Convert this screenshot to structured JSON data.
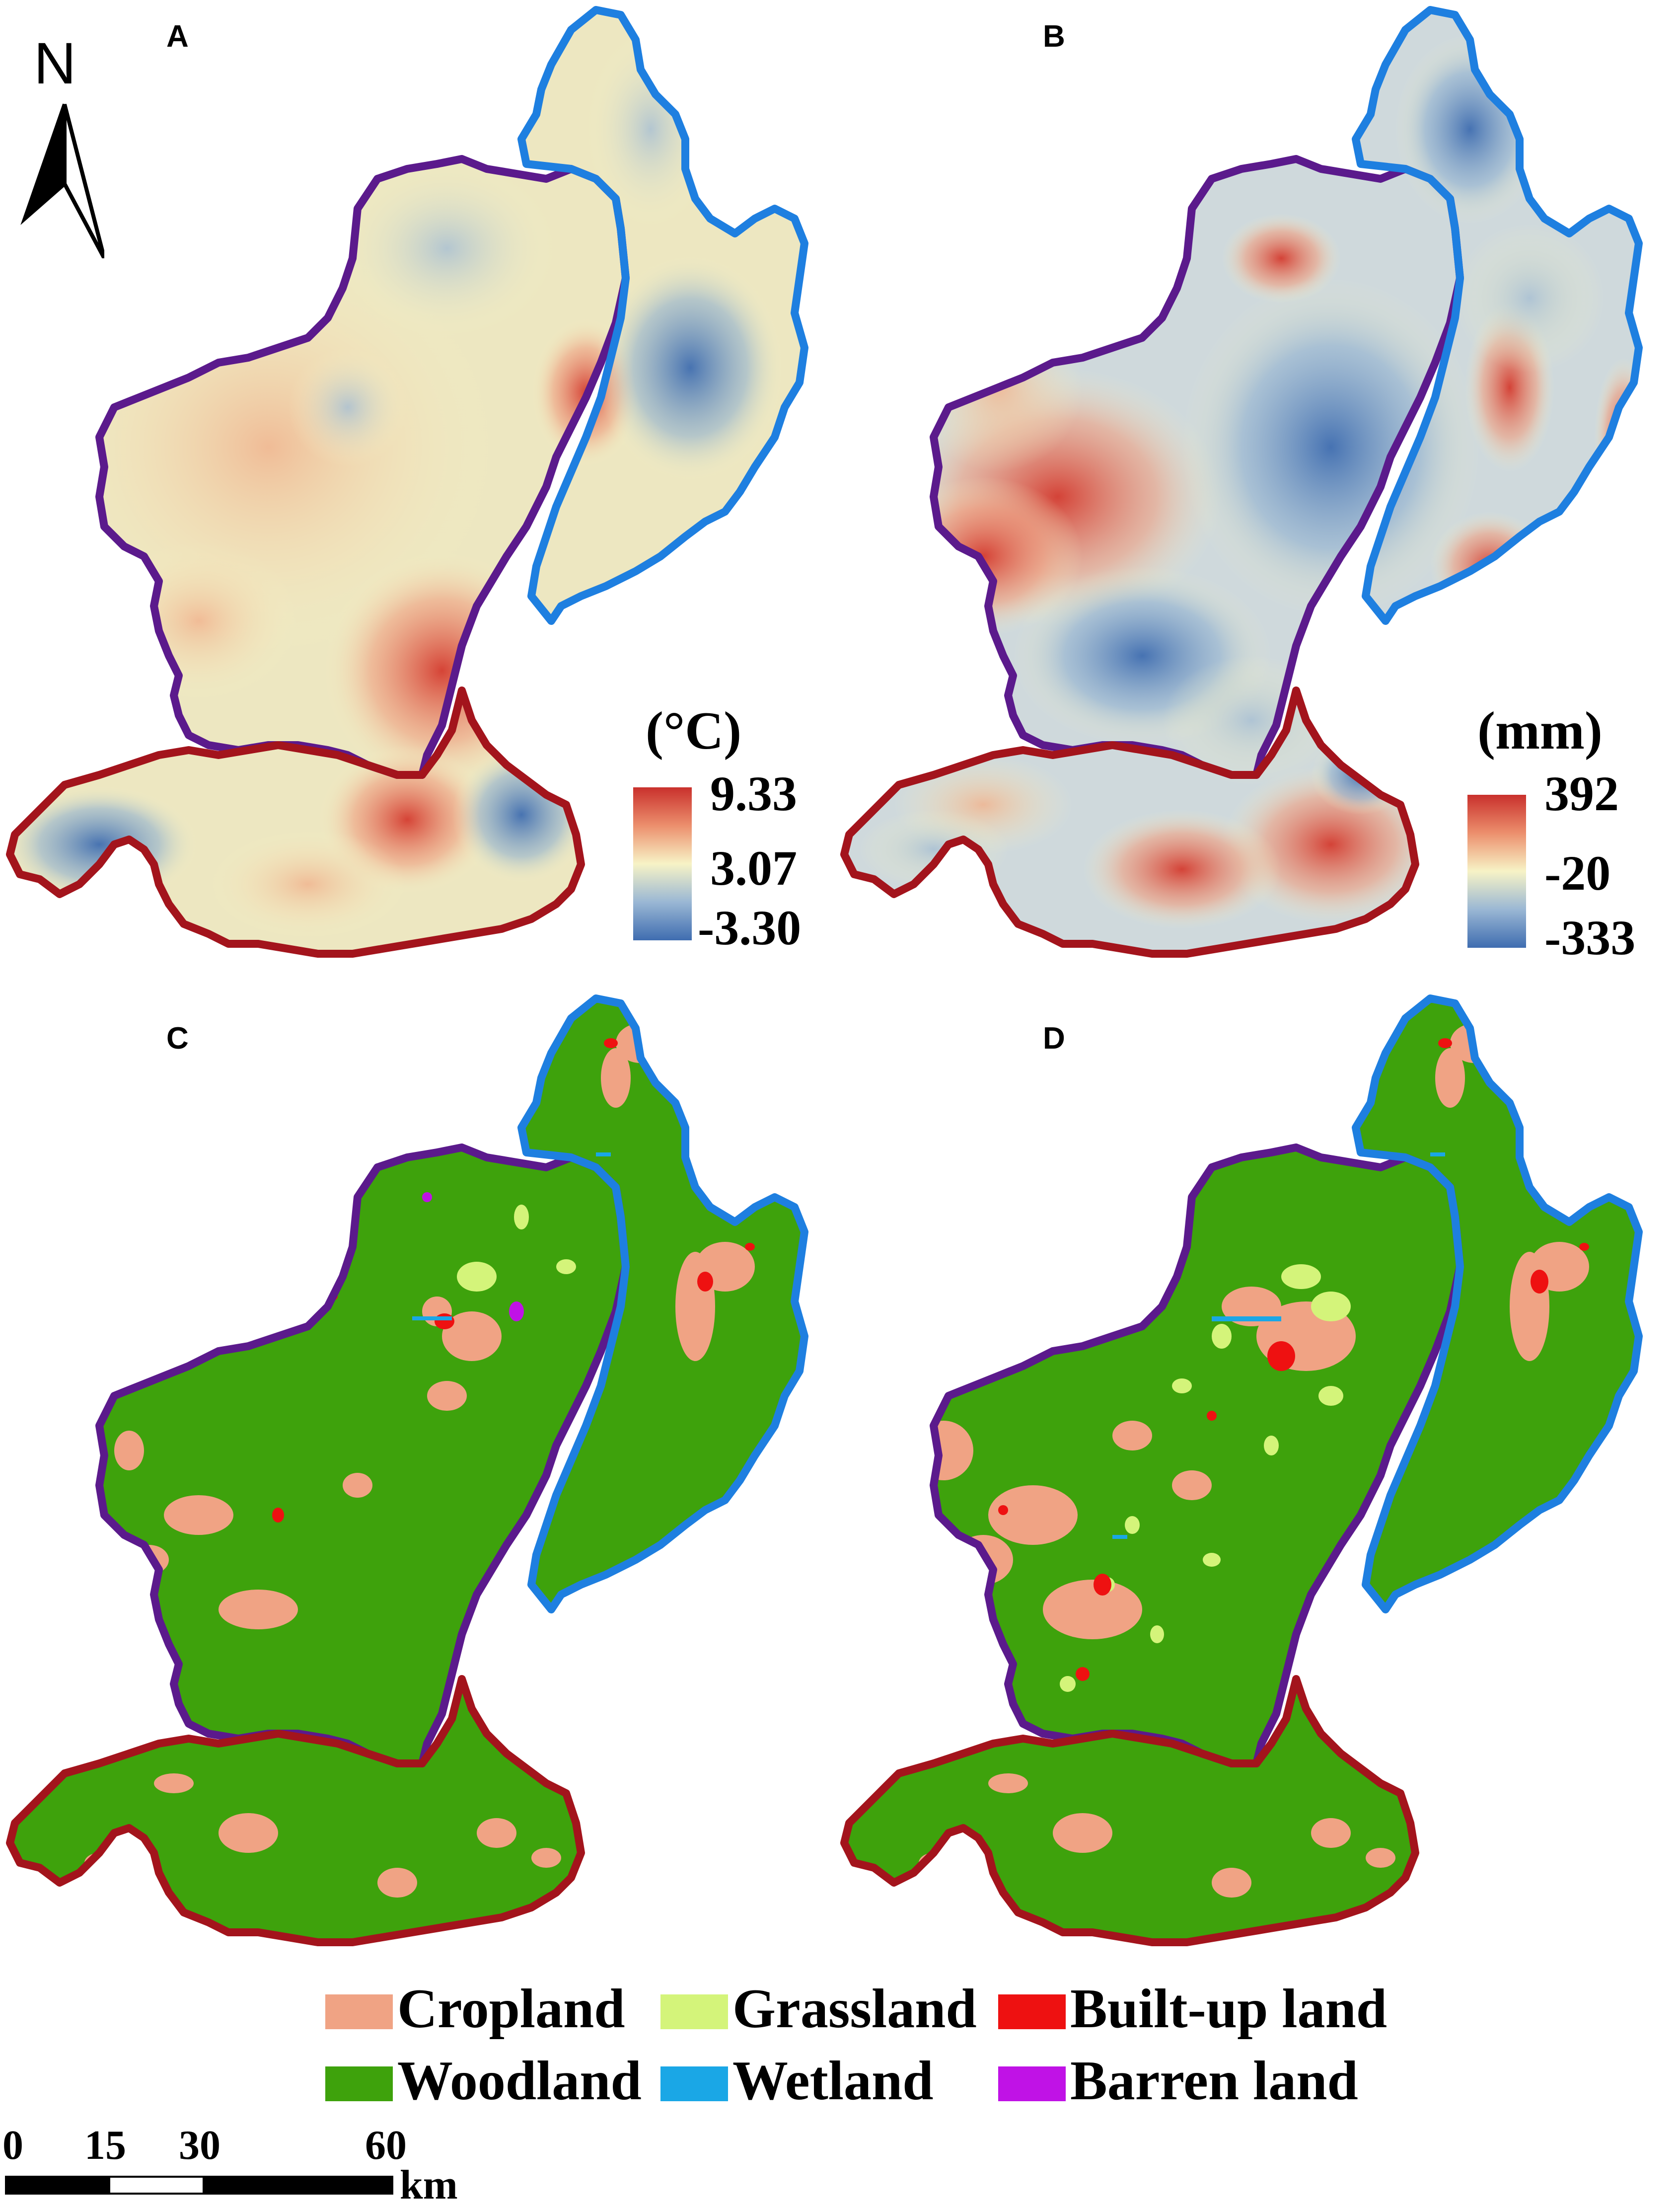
{
  "compass": {
    "letter": "N"
  },
  "panels": {
    "A": {
      "label": "A",
      "legend": {
        "unit": "(°C)",
        "max": "9.33",
        "mid": "3.07",
        "min": "-3.30",
        "colors": {
          "high": "#c9302c",
          "mid": "#f7f3c6",
          "low": "#3f6db0"
        }
      }
    },
    "B": {
      "label": "B",
      "legend": {
        "unit": "(mm)",
        "max": "392",
        "mid": "-20",
        "min": "-333",
        "colors": {
          "high": "#c9302c",
          "mid": "#f7f3c6",
          "low": "#3f6db0"
        }
      }
    },
    "C": {
      "label": "C"
    },
    "D": {
      "label": "D"
    }
  },
  "region_outline_colors": {
    "west": "#5b1a8c",
    "east": "#1e7fe0",
    "south": "#a3141c"
  },
  "land_use_legend": [
    {
      "label": "Cropland",
      "color": "#f0a384"
    },
    {
      "label": "Grassland",
      "color": "#d4f47a"
    },
    {
      "label": "Built-up land",
      "color": "#ee1111"
    },
    {
      "label": "Woodland",
      "color": "#3ea20c"
    },
    {
      "label": "Wetland",
      "color": "#1aa7e6"
    },
    {
      "label": "Barren land",
      "color": "#c012e6"
    }
  ],
  "scale_bar": {
    "ticks": [
      "0",
      "15",
      "30",
      "60"
    ],
    "unit": "km"
  }
}
